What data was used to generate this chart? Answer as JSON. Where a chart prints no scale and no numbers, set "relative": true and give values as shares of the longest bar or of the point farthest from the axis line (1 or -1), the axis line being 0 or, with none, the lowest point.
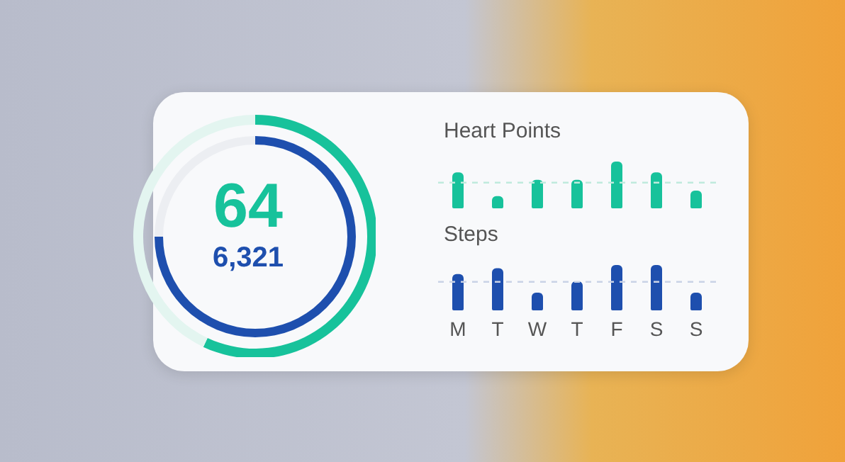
{
  "chart_data": [
    {
      "type": "donut",
      "categories": [
        null,
        null
      ],
      "values": [
        57,
        43
      ],
      "colors": [
        "#17c29b",
        "#e3f5f0"
      ],
      "annotations": [
        "64"
      ]
    },
    {
      "type": "donut",
      "categories": [
        null,
        null
      ],
      "values": [
        75,
        25
      ],
      "colors": [
        "#1e4fae",
        "#eceef2"
      ],
      "annotations": [
        "6,321"
      ]
    },
    {
      "type": "bar",
      "title": "Heart Points",
      "categories": [
        null,
        null,
        null,
        null,
        null,
        null,
        null
      ],
      "values": [
        0.77,
        0.26,
        0.61,
        0.61,
        1,
        0.77,
        0.38
      ],
      "color": "#17c29b",
      "relative": true,
      "tick_labels": false,
      "ref_lines": [
        {
          "axis": "y",
          "value": 0.55,
          "color": "#bfeadd",
          "line_style": "dashed"
        }
      ]
    },
    {
      "type": "bar",
      "title": "Steps",
      "categories": [
        "M",
        "T",
        "W",
        "T",
        "F",
        "S",
        "S"
      ],
      "values": [
        0.8,
        0.93,
        0.39,
        0.64,
        1,
        1,
        0.39
      ],
      "color": "#1e4fae",
      "relative": true,
      "ref_lines": [
        {
          "axis": "y",
          "value": 0.63,
          "color": "#c9d3e6",
          "line_style": "dashed"
        }
      ]
    }
  ]
}
